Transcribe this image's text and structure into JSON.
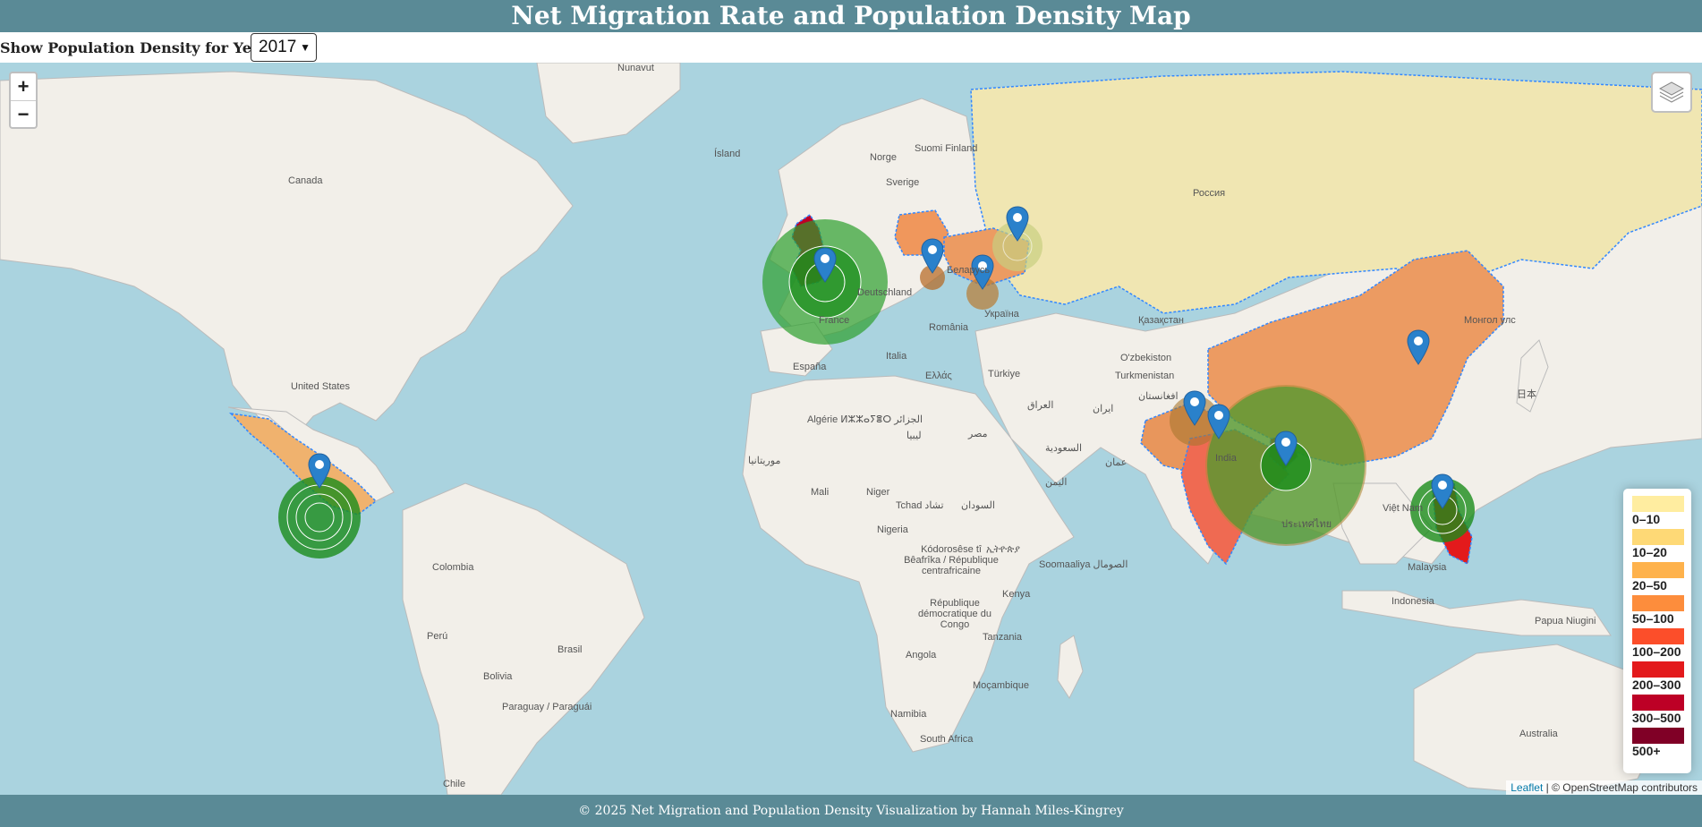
{
  "header": {
    "title": "Net Migration Rate and Population Density Map"
  },
  "controls": {
    "year_label": "Show Population Density for Year:",
    "year_selected": "2017"
  },
  "map": {
    "zoom_in": "+",
    "zoom_out": "−",
    "labels": [
      "Nunavut",
      "Canada",
      "Ísland",
      "Norge",
      "Sverige",
      "Suomi Finland",
      "Россия",
      "United States",
      "Беларусь",
      "Deutschland",
      "France",
      "España",
      "Italia",
      "România",
      "Україна",
      "Ελλάς",
      "Türkiye",
      "Қазақстан",
      "O'zbekiston",
      "Turkmenistan",
      "Монгол улс",
      "日本",
      "ایران",
      "العراق",
      "افغانستان",
      "Algérie ⵍⵣⵣⴰⵢⴻⵔ الجزائر",
      "ليبيا",
      "مصر",
      "السعودية",
      "عمان",
      "اليمن",
      "India",
      "Việt Nam",
      "ประเทศไทย",
      "Malaysia",
      "Indonesia",
      "Papua Niugini",
      "Australia",
      "موريتانيا",
      "Mali",
      "Niger",
      "Tchad تشاد",
      "السودان",
      "Nigeria",
      "Kódorosêse tî Bêafrîka / République centrafricaine",
      "ኢትዮጵያ",
      "Soomaaliya الصومال",
      "Kenya",
      "République démocratique du Congo",
      "Tanzania",
      "Angola",
      "Moçambique",
      "Namibia",
      "South Africa",
      "Colombia",
      "Perú",
      "Brasil",
      "Bolivia",
      "Paraguay / Paraguái",
      "Chile"
    ]
  },
  "legend": {
    "items": [
      {
        "label": "0–10",
        "color": "#ffeda0"
      },
      {
        "label": "10–20",
        "color": "#fed976"
      },
      {
        "label": "20–50",
        "color": "#feb24c"
      },
      {
        "label": "50–100",
        "color": "#fd8d3c"
      },
      {
        "label": "100–200",
        "color": "#fc4e2a"
      },
      {
        "label": "200–300",
        "color": "#e31a1c"
      },
      {
        "label": "300–500",
        "color": "#bd0026"
      },
      {
        "label": "500+",
        "color": "#800026"
      }
    ]
  },
  "attribution": {
    "leaflet": "Leaflet",
    "rest": " | © OpenStreetMap contributors"
  },
  "footer": {
    "text": "© 2025 Net Migration and Population Density Visualization by Hannah Miles-Kingrey"
  },
  "colors": {
    "header_bg": "#5a8a96",
    "ocean": "#aad3df",
    "land": "#f2efe9",
    "migration_positive": "#2ca02c",
    "marker": "#2a81cb"
  },
  "markers": [
    {
      "name": "United Kingdom",
      "icon": "map-marker-icon"
    },
    {
      "name": "Poland",
      "icon": "map-marker-icon"
    },
    {
      "name": "Ukraine",
      "icon": "map-marker-icon"
    },
    {
      "name": "Russia",
      "icon": "map-marker-icon"
    },
    {
      "name": "China",
      "icon": "map-marker-icon"
    },
    {
      "name": "Mexico",
      "icon": "map-marker-icon"
    },
    {
      "name": "Afghanistan",
      "icon": "map-marker-icon"
    },
    {
      "name": "Pakistan",
      "icon": "map-marker-icon"
    },
    {
      "name": "Bangladesh",
      "icon": "map-marker-icon"
    },
    {
      "name": "Philippines",
      "icon": "map-marker-icon"
    }
  ]
}
